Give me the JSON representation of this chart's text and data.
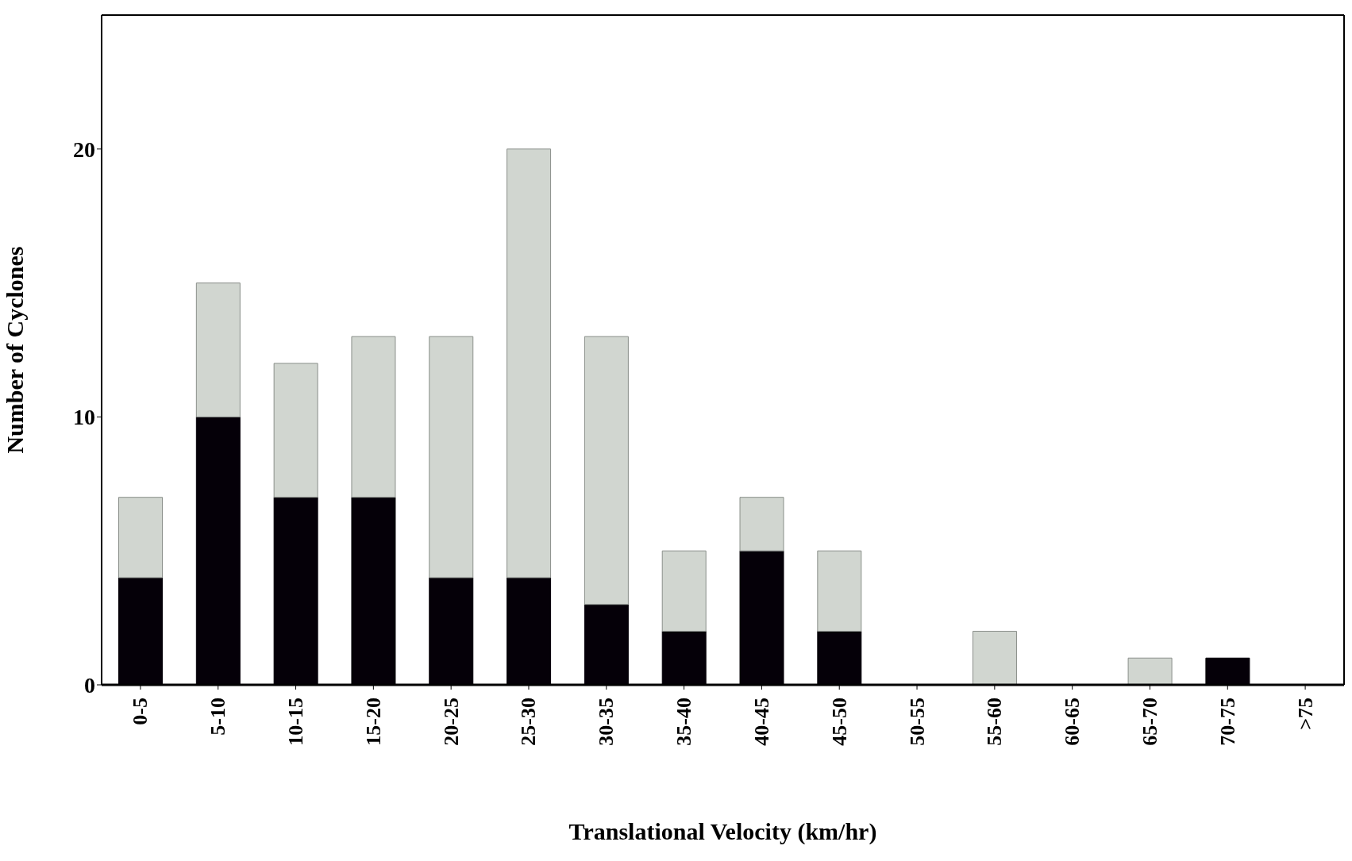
{
  "chart_data": {
    "type": "bar",
    "stacked": true,
    "xlabel": "Translational Velocity (km/hr)",
    "ylabel": "Number of Cyclones",
    "categories": [
      "0-5",
      "5-10",
      "10-15",
      "15-20",
      "20-25",
      "25-30",
      "30-35",
      "35-40",
      "40-45",
      "45-50",
      "50-55",
      "55-60",
      "60-65",
      "65-70",
      "70-75",
      ">75"
    ],
    "series": [
      {
        "color": "#050008",
        "values": [
          4,
          10,
          7,
          7,
          4,
          4,
          3,
          2,
          5,
          2,
          0,
          0,
          0,
          0,
          1,
          0
        ]
      },
      {
        "color": "#d1d6d0",
        "values": [
          3,
          5,
          5,
          6,
          9,
          16,
          10,
          3,
          2,
          3,
          0,
          2,
          0,
          1,
          0,
          0
        ]
      }
    ],
    "ylim": [
      0,
      25
    ],
    "yticks": [
      0,
      10,
      20
    ],
    "grid": false,
    "legend": false
  }
}
